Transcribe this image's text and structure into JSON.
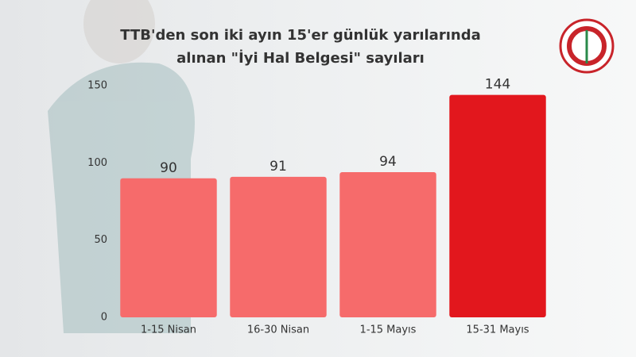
{
  "chart_data": {
    "type": "bar",
    "title": [
      "TTB'den son iki ayın 15'er günlük yarılarında",
      "alınan \"İyi Hal Belgesi\" sayıları"
    ],
    "categories": [
      "1-15 Nisan",
      "16-30 Nisan",
      "1-15 Mayıs",
      "15-31 Mayıs"
    ],
    "values": [
      90,
      91,
      94,
      144
    ],
    "colors": [
      "#f66b6b",
      "#f66b6b",
      "#f66b6b",
      "#e2171d"
    ],
    "ylim": [
      0,
      150
    ],
    "yticks": [
      0,
      50,
      100,
      150
    ],
    "grid": false
  }
}
